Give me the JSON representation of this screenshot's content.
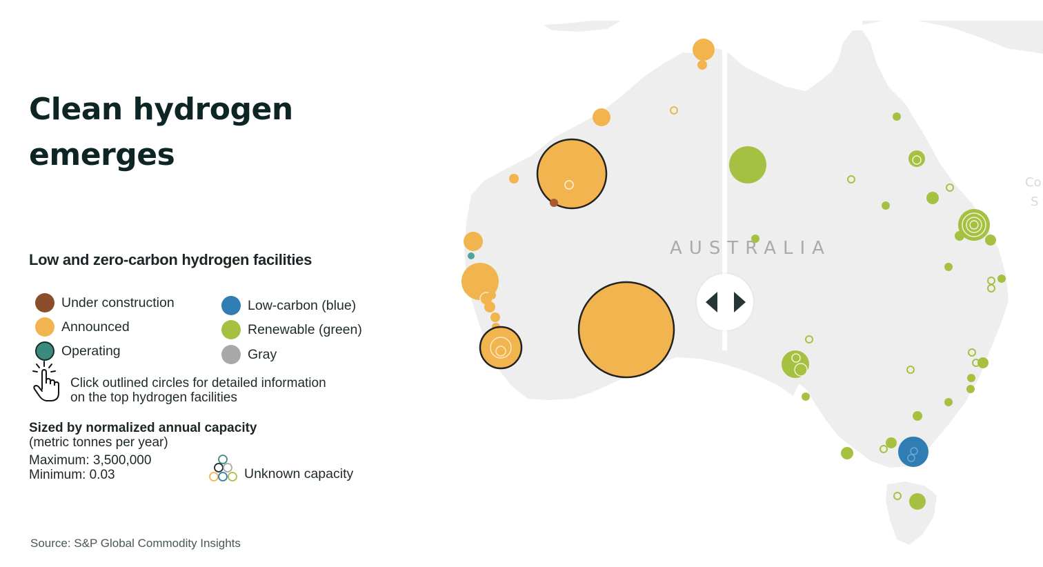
{
  "title": "Clean hydrogen emerges",
  "legend": {
    "heading": "Low and zero-carbon hydrogen facilities",
    "status_items": [
      {
        "label": "Under construction",
        "color": "#8b4e2b"
      },
      {
        "label": "Announced",
        "color": "#f2b44e"
      },
      {
        "label": "Operating",
        "color": "#3a8a7e"
      }
    ],
    "type_items": [
      {
        "label": "Low-carbon (blue)",
        "color": "#2f7db2"
      },
      {
        "label": "Renewable (green)",
        "color": "#a6c142"
      },
      {
        "label": "Gray",
        "color": "#a9a9a9"
      }
    ],
    "hint_line1": "Click outlined circles for detailed information",
    "hint_line2": "on the top hydrogen facilities",
    "size_title": "Sized by normalized annual capacity",
    "size_unit": "(metric tonnes per year)",
    "size_max": "Maximum: 3,500,000",
    "size_min": "Minimum: 0.03",
    "unknown_label": "Unknown capacity"
  },
  "map": {
    "country_label": "AUSTRALIA",
    "edge_label_1": "Co",
    "edge_label_2": "S",
    "land_color": "#eeeeee"
  },
  "source": "Source: S&P Global Commodity Insights"
}
